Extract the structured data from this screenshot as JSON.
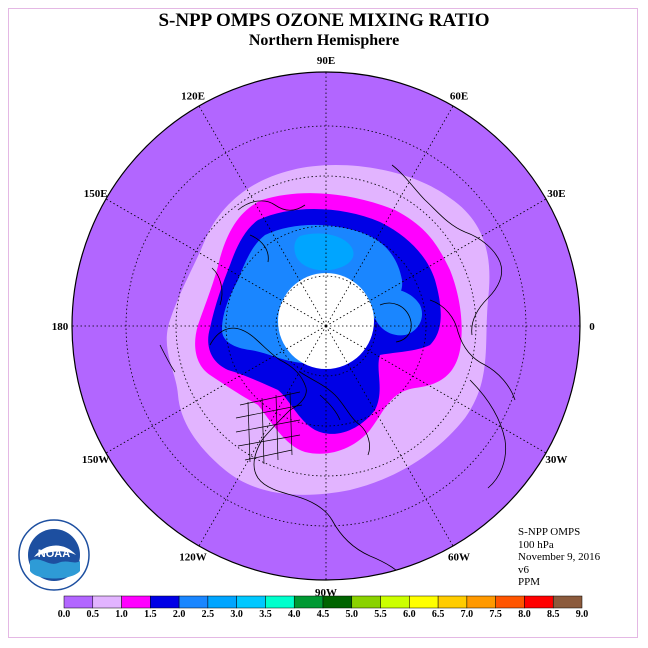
{
  "title": "S-NPP OMPS OZONE MIXING RATIO",
  "subtitle": "Northern Hemisphere",
  "info": {
    "instrument": "S-NPP OMPS",
    "level": "100 hPa",
    "date": "November 9, 2016",
    "version": "v6",
    "unit": "PPM"
  },
  "logo": {
    "text": "NOAA",
    "ring_text": "NATIONAL OCEANIC AND ATMOSPHERIC ADMINISTRATION U.S. DEPARTMENT OF COMMERCE"
  },
  "longitudes": [
    "90E",
    "60E",
    "30E",
    "0",
    "30W",
    "60W",
    "90W",
    "120W",
    "150W",
    "180",
    "150E",
    "120E"
  ],
  "colorbar": {
    "labels": [
      "0.0",
      "0.5",
      "1.0",
      "1.5",
      "2.0",
      "2.5",
      "3.0",
      "3.5",
      "4.0",
      "4.5",
      "5.0",
      "5.5",
      "6.0",
      "6.5",
      "7.0",
      "7.5",
      "8.0",
      "8.5",
      "9.0"
    ],
    "colors": [
      "#b266ff",
      "#e2b4ff",
      "#ff00ff",
      "#0000e6",
      "#1a86ff",
      "#00a5ff",
      "#00c8ff",
      "#00ffcc",
      "#009933",
      "#006400",
      "#8ad200",
      "#ccff00",
      "#ffff00",
      "#ffcc00",
      "#ff9900",
      "#ff5500",
      "#ff0000",
      "#8b5a3c"
    ]
  },
  "map": {
    "polar_gap": "no data",
    "band_colors": {
      "outer": "#b266ff",
      "band_05_10": "#e2b4ff",
      "band_10_15": "#ff00ff",
      "band_15_20": "#0000e6",
      "band_20_25": "#1a86ff",
      "no_data": "#ffffff"
    }
  }
}
